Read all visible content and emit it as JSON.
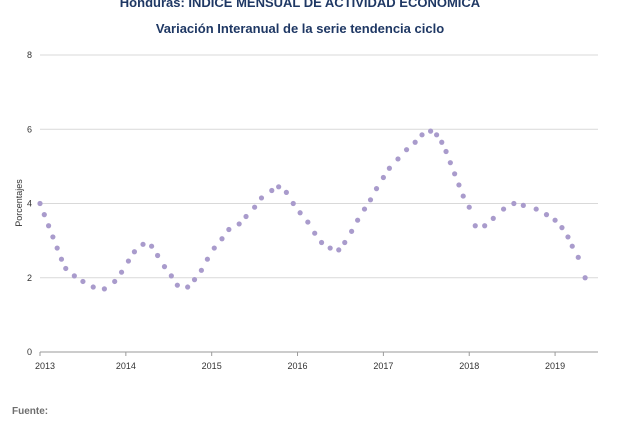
{
  "chart_data": {
    "type": "scatter",
    "title": "Honduras: ÍNDICE MENSUAL DE ACTIVIDAD ECONÓMICA",
    "subtitle": "Variación Interanual de la serie tendencia ciclo",
    "xlabel": "",
    "ylabel": "Porcentajes",
    "ylim": [
      0,
      8
    ],
    "yticks": [
      "0",
      "2",
      "4",
      "6",
      "8"
    ],
    "xlim": [
      2013,
      2019.5
    ],
    "xticks": [
      "2013",
      "2014",
      "2015",
      "2016",
      "2017",
      "2018",
      "2019"
    ],
    "grid": "horizontal",
    "marker_color": "#a99bcc",
    "x": [
      2013.0,
      2013.05,
      2013.1,
      2013.15,
      2013.2,
      2013.25,
      2013.3,
      2013.4,
      2013.5,
      2013.62,
      2013.75,
      2013.87,
      2013.95,
      2014.03,
      2014.1,
      2014.2,
      2014.3,
      2014.37,
      2014.45,
      2014.53,
      2014.6,
      2014.72,
      2014.8,
      2014.88,
      2014.95,
      2015.03,
      2015.12,
      2015.2,
      2015.32,
      2015.4,
      2015.5,
      2015.58,
      2015.7,
      2015.78,
      2015.87,
      2015.95,
      2016.03,
      2016.12,
      2016.2,
      2016.28,
      2016.38,
      2016.48,
      2016.55,
      2016.63,
      2016.7,
      2016.78,
      2016.85,
      2016.92,
      2017.0,
      2017.07,
      2017.17,
      2017.27,
      2017.37,
      2017.45,
      2017.55,
      2017.62,
      2017.68,
      2017.73,
      2017.78,
      2017.83,
      2017.88,
      2017.93,
      2018.0,
      2018.07,
      2018.18,
      2018.28,
      2018.4,
      2018.52,
      2018.63,
      2018.78,
      2018.9,
      2019.0,
      2019.08,
      2019.15,
      2019.2,
      2019.27,
      2019.35
    ],
    "y": [
      4.0,
      3.7,
      3.4,
      3.1,
      2.8,
      2.5,
      2.25,
      2.05,
      1.9,
      1.75,
      1.7,
      1.9,
      2.15,
      2.45,
      2.7,
      2.9,
      2.85,
      2.6,
      2.3,
      2.05,
      1.8,
      1.75,
      1.95,
      2.2,
      2.5,
      2.8,
      3.05,
      3.3,
      3.45,
      3.65,
      3.9,
      4.15,
      4.35,
      4.45,
      4.3,
      4.0,
      3.75,
      3.5,
      3.2,
      2.95,
      2.8,
      2.75,
      2.95,
      3.25,
      3.55,
      3.85,
      4.1,
      4.4,
      4.7,
      4.95,
      5.2,
      5.45,
      5.65,
      5.85,
      5.95,
      5.85,
      5.65,
      5.4,
      5.1,
      4.8,
      4.5,
      4.2,
      3.9,
      3.4,
      3.4,
      3.6,
      3.85,
      4.0,
      3.95,
      3.85,
      3.7,
      3.55,
      3.35,
      3.1,
      2.85,
      2.55,
      2.0
    ]
  },
  "footer": {
    "label": "Fuente:"
  }
}
